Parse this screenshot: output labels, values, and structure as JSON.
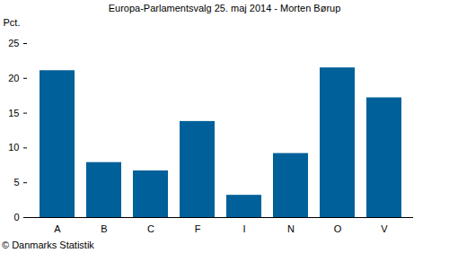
{
  "chart_data": {
    "type": "bar",
    "title": "Europa-Parlamentsvalg 25. maj 2014 - Morten Børup",
    "y_label": "Pct.",
    "caption": "© Danmarks Statistik",
    "categories": [
      "A",
      "B",
      "C",
      "F",
      "I",
      "N",
      "O",
      "V"
    ],
    "values": [
      21.1,
      7.9,
      6.7,
      13.8,
      3.2,
      9.2,
      21.5,
      17.2
    ],
    "color": "#00609a",
    "ylim": [
      0,
      25
    ],
    "yticks": [
      0,
      5,
      10,
      15,
      20,
      25
    ],
    "grid": false
  }
}
